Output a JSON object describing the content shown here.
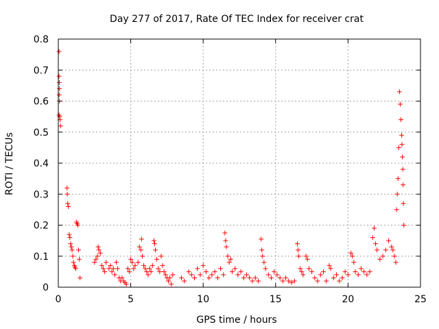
{
  "chart_data": {
    "type": "scatter",
    "title": "Day 277 of 2017, Rate Of TEC Index for receiver crat",
    "xlabel": "GPS time / hours",
    "ylabel": "ROTI / TECUs",
    "xlim": [
      0,
      25
    ],
    "ylim": [
      0,
      0.8
    ],
    "xticks": [
      "0",
      "5",
      "10",
      "15",
      "20",
      "25"
    ],
    "yticks": [
      "0",
      "0.1",
      "0.2",
      "0.3",
      "0.4",
      "0.5",
      "0.6",
      "0.7",
      "0.8"
    ],
    "grid": true,
    "marker": "+",
    "color": "#ff0000",
    "series": [
      {
        "name": "ROTI",
        "points": [
          [
            0.05,
            0.76
          ],
          [
            0.05,
            0.68
          ],
          [
            0.07,
            0.66
          ],
          [
            0.08,
            0.64
          ],
          [
            0.06,
            0.62
          ],
          [
            0.08,
            0.6
          ],
          [
            0.05,
            0.555
          ],
          [
            0.1,
            0.55
          ],
          [
            0.12,
            0.54
          ],
          [
            0.15,
            0.52
          ],
          [
            0.6,
            0.32
          ],
          [
            0.62,
            0.3
          ],
          [
            0.65,
            0.27
          ],
          [
            0.7,
            0.26
          ],
          [
            0.75,
            0.17
          ],
          [
            0.8,
            0.16
          ],
          [
            0.85,
            0.14
          ],
          [
            0.9,
            0.13
          ],
          [
            0.95,
            0.12
          ],
          [
            1.0,
            0.1
          ],
          [
            1.05,
            0.08
          ],
          [
            1.1,
            0.07
          ],
          [
            1.15,
            0.065
          ],
          [
            1.2,
            0.06
          ],
          [
            1.25,
            0.21
          ],
          [
            1.3,
            0.205
          ],
          [
            1.35,
            0.2
          ],
          [
            1.4,
            0.12
          ],
          [
            1.45,
            0.09
          ],
          [
            1.5,
            0.03
          ],
          [
            2.5,
            0.08
          ],
          [
            2.6,
            0.09
          ],
          [
            2.7,
            0.1
          ],
          [
            2.75,
            0.13
          ],
          [
            2.8,
            0.12
          ],
          [
            2.9,
            0.11
          ],
          [
            3.0,
            0.07
          ],
          [
            3.1,
            0.06
          ],
          [
            3.2,
            0.05
          ],
          [
            3.3,
            0.08
          ],
          [
            3.5,
            0.06
          ],
          [
            3.6,
            0.07
          ],
          [
            3.7,
            0.05
          ],
          [
            3.8,
            0.06
          ],
          [
            3.9,
            0.04
          ],
          [
            4.0,
            0.08
          ],
          [
            4.1,
            0.06
          ],
          [
            4.2,
            0.03
          ],
          [
            4.3,
            0.02
          ],
          [
            4.4,
            0.03
          ],
          [
            4.5,
            0.02
          ],
          [
            4.6,
            0.015
          ],
          [
            4.7,
            0.01
          ],
          [
            4.8,
            0.06
          ],
          [
            4.9,
            0.05
          ],
          [
            5.0,
            0.09
          ],
          [
            5.1,
            0.08
          ],
          [
            5.2,
            0.06
          ],
          [
            5.3,
            0.07
          ],
          [
            5.5,
            0.08
          ],
          [
            5.6,
            0.13
          ],
          [
            5.7,
            0.12
          ],
          [
            5.75,
            0.155
          ],
          [
            5.8,
            0.1
          ],
          [
            5.9,
            0.07
          ],
          [
            6.0,
            0.06
          ],
          [
            6.1,
            0.05
          ],
          [
            6.2,
            0.04
          ],
          [
            6.3,
            0.06
          ],
          [
            6.4,
            0.05
          ],
          [
            6.5,
            0.07
          ],
          [
            6.6,
            0.15
          ],
          [
            6.65,
            0.14
          ],
          [
            6.7,
            0.12
          ],
          [
            6.8,
            0.09
          ],
          [
            6.9,
            0.06
          ],
          [
            7.0,
            0.05
          ],
          [
            7.1,
            0.1
          ],
          [
            7.2,
            0.07
          ],
          [
            7.3,
            0.05
          ],
          [
            7.4,
            0.04
          ],
          [
            7.5,
            0.03
          ],
          [
            7.6,
            0.02
          ],
          [
            7.7,
            0.03
          ],
          [
            7.8,
            0.01
          ],
          [
            7.9,
            0.04
          ],
          [
            8.5,
            0.03
          ],
          [
            8.7,
            0.02
          ],
          [
            9.0,
            0.05
          ],
          [
            9.2,
            0.04
          ],
          [
            9.4,
            0.03
          ],
          [
            9.6,
            0.06
          ],
          [
            9.8,
            0.04
          ],
          [
            10.0,
            0.07
          ],
          [
            10.2,
            0.05
          ],
          [
            10.4,
            0.03
          ],
          [
            10.6,
            0.04
          ],
          [
            10.8,
            0.05
          ],
          [
            11.0,
            0.03
          ],
          [
            11.2,
            0.06
          ],
          [
            11.4,
            0.04
          ],
          [
            11.5,
            0.175
          ],
          [
            11.55,
            0.15
          ],
          [
            11.6,
            0.13
          ],
          [
            11.7,
            0.1
          ],
          [
            11.8,
            0.08
          ],
          [
            11.9,
            0.09
          ],
          [
            12.0,
            0.05
          ],
          [
            12.2,
            0.06
          ],
          [
            12.4,
            0.04
          ],
          [
            12.6,
            0.05
          ],
          [
            12.8,
            0.03
          ],
          [
            13.0,
            0.04
          ],
          [
            13.2,
            0.03
          ],
          [
            13.4,
            0.02
          ],
          [
            13.6,
            0.03
          ],
          [
            13.8,
            0.02
          ],
          [
            14.0,
            0.155
          ],
          [
            14.05,
            0.12
          ],
          [
            14.1,
            0.1
          ],
          [
            14.2,
            0.08
          ],
          [
            14.3,
            0.06
          ],
          [
            14.5,
            0.04
          ],
          [
            14.7,
            0.03
          ],
          [
            14.9,
            0.05
          ],
          [
            15.1,
            0.04
          ],
          [
            15.3,
            0.03
          ],
          [
            15.5,
            0.02
          ],
          [
            15.7,
            0.03
          ],
          [
            15.9,
            0.02
          ],
          [
            16.1,
            0.015
          ],
          [
            16.3,
            0.02
          ],
          [
            16.5,
            0.14
          ],
          [
            16.55,
            0.12
          ],
          [
            16.6,
            0.1
          ],
          [
            16.7,
            0.06
          ],
          [
            16.8,
            0.05
          ],
          [
            16.9,
            0.04
          ],
          [
            17.1,
            0.1
          ],
          [
            17.2,
            0.09
          ],
          [
            17.3,
            0.06
          ],
          [
            17.5,
            0.05
          ],
          [
            17.7,
            0.03
          ],
          [
            17.9,
            0.02
          ],
          [
            18.1,
            0.04
          ],
          [
            18.3,
            0.05
          ],
          [
            18.5,
            0.02
          ],
          [
            18.7,
            0.07
          ],
          [
            18.8,
            0.06
          ],
          [
            19.0,
            0.03
          ],
          [
            19.2,
            0.04
          ],
          [
            19.4,
            0.02
          ],
          [
            19.6,
            0.03
          ],
          [
            19.8,
            0.05
          ],
          [
            20.0,
            0.04
          ],
          [
            20.2,
            0.11
          ],
          [
            20.3,
            0.1
          ],
          [
            20.4,
            0.08
          ],
          [
            20.5,
            0.05
          ],
          [
            20.7,
            0.04
          ],
          [
            20.9,
            0.06
          ],
          [
            21.1,
            0.05
          ],
          [
            21.3,
            0.04
          ],
          [
            21.5,
            0.05
          ],
          [
            21.7,
            0.16
          ],
          [
            21.8,
            0.19
          ],
          [
            21.9,
            0.14
          ],
          [
            22.0,
            0.12
          ],
          [
            22.2,
            0.09
          ],
          [
            22.4,
            0.1
          ],
          [
            22.6,
            0.12
          ],
          [
            22.8,
            0.15
          ],
          [
            23.0,
            0.13
          ],
          [
            23.1,
            0.12
          ],
          [
            23.2,
            0.1
          ],
          [
            23.3,
            0.08
          ],
          [
            23.35,
            0.25
          ],
          [
            23.4,
            0.3
          ],
          [
            23.45,
            0.35
          ],
          [
            23.5,
            0.45
          ],
          [
            23.55,
            0.63
          ],
          [
            23.6,
            0.59
          ],
          [
            23.65,
            0.54
          ],
          [
            23.7,
            0.49
          ],
          [
            23.72,
            0.46
          ],
          [
            23.75,
            0.42
          ],
          [
            23.78,
            0.38
          ],
          [
            23.8,
            0.33
          ],
          [
            23.82,
            0.27
          ],
          [
            23.85,
            0.2
          ]
        ]
      }
    ]
  }
}
